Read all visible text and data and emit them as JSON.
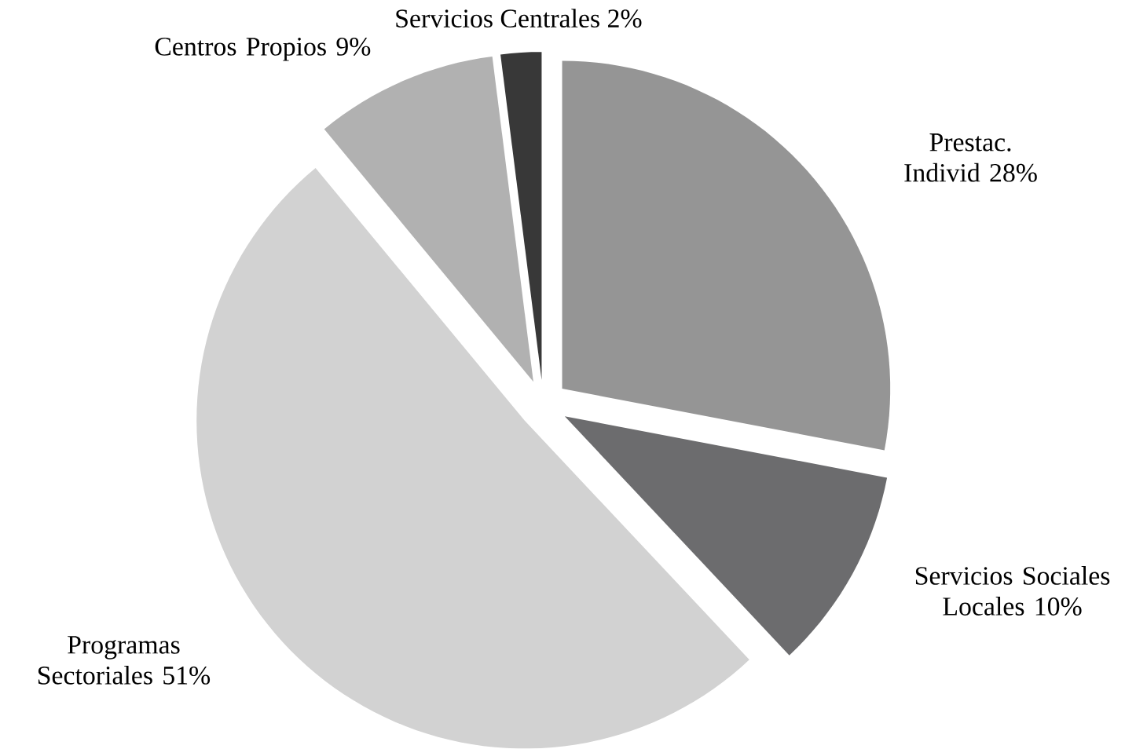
{
  "chart_data": {
    "type": "pie",
    "categories": [
      "Prestac. Individ",
      "Servicios Sociales Locales",
      "Programas Sectoriales",
      "Centros Propios",
      "Servicios Centrales"
    ],
    "values": [
      28,
      10,
      51,
      9,
      2
    ],
    "value_labels": [
      "28%",
      "10%",
      "51%",
      "9%",
      "2%"
    ],
    "colors": [
      "#959595",
      "#6c6c6e",
      "#d2d2d2",
      "#b1b1b1",
      "#383838"
    ]
  }
}
